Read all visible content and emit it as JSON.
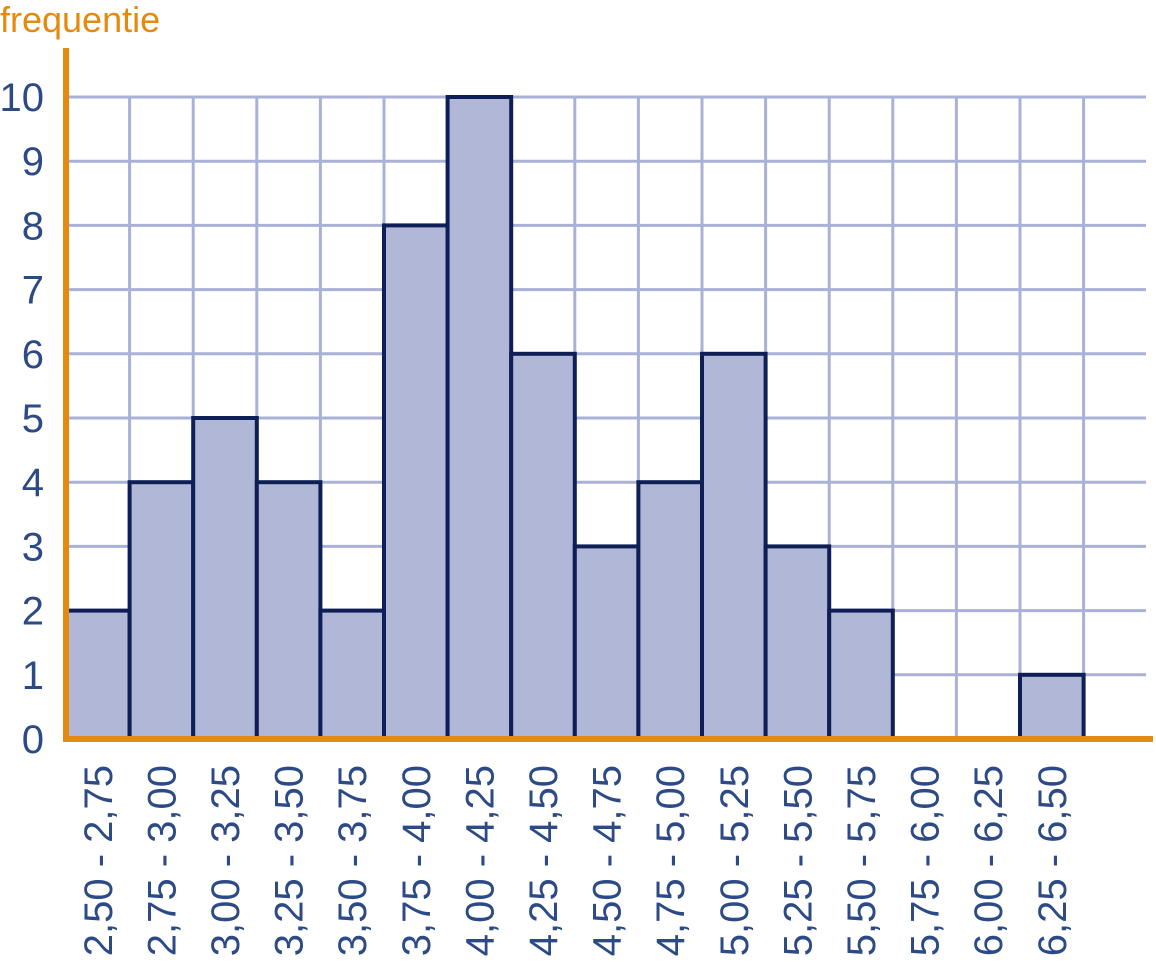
{
  "chart_data": {
    "type": "bar",
    "ylabel": "frequentie",
    "xlabel": "",
    "categories": [
      "2,50 - 2,75",
      "2,75 - 3,00",
      "3,00 - 3,25",
      "3,25 - 3,50",
      "3,50 - 3,75",
      "3,75 - 4,00",
      "4,00 - 4,25",
      "4,25 - 4,50",
      "4,50 - 4,75",
      "4,75 - 5,00",
      "5,00 - 5,25",
      "5,25 - 5,50",
      "5,50 - 5,75",
      "5,75 - 6,00",
      "6,00 - 6,25",
      "6,25 - 6,50"
    ],
    "values": [
      2,
      4,
      5,
      4,
      2,
      8,
      10,
      6,
      3,
      4,
      6,
      3,
      2,
      0,
      0,
      1
    ],
    "ylim": [
      0,
      10
    ],
    "yticks": [
      "0",
      "1",
      "2",
      "3",
      "4",
      "5",
      "6",
      "7",
      "8",
      "9",
      "10"
    ],
    "grid": true,
    "colors": {
      "axis": "#e58a0e",
      "bar_fill": "#b1b7d6",
      "bar_stroke": "#0e1e56",
      "grid": "#aab1d6",
      "text": "#2c4a86"
    }
  }
}
